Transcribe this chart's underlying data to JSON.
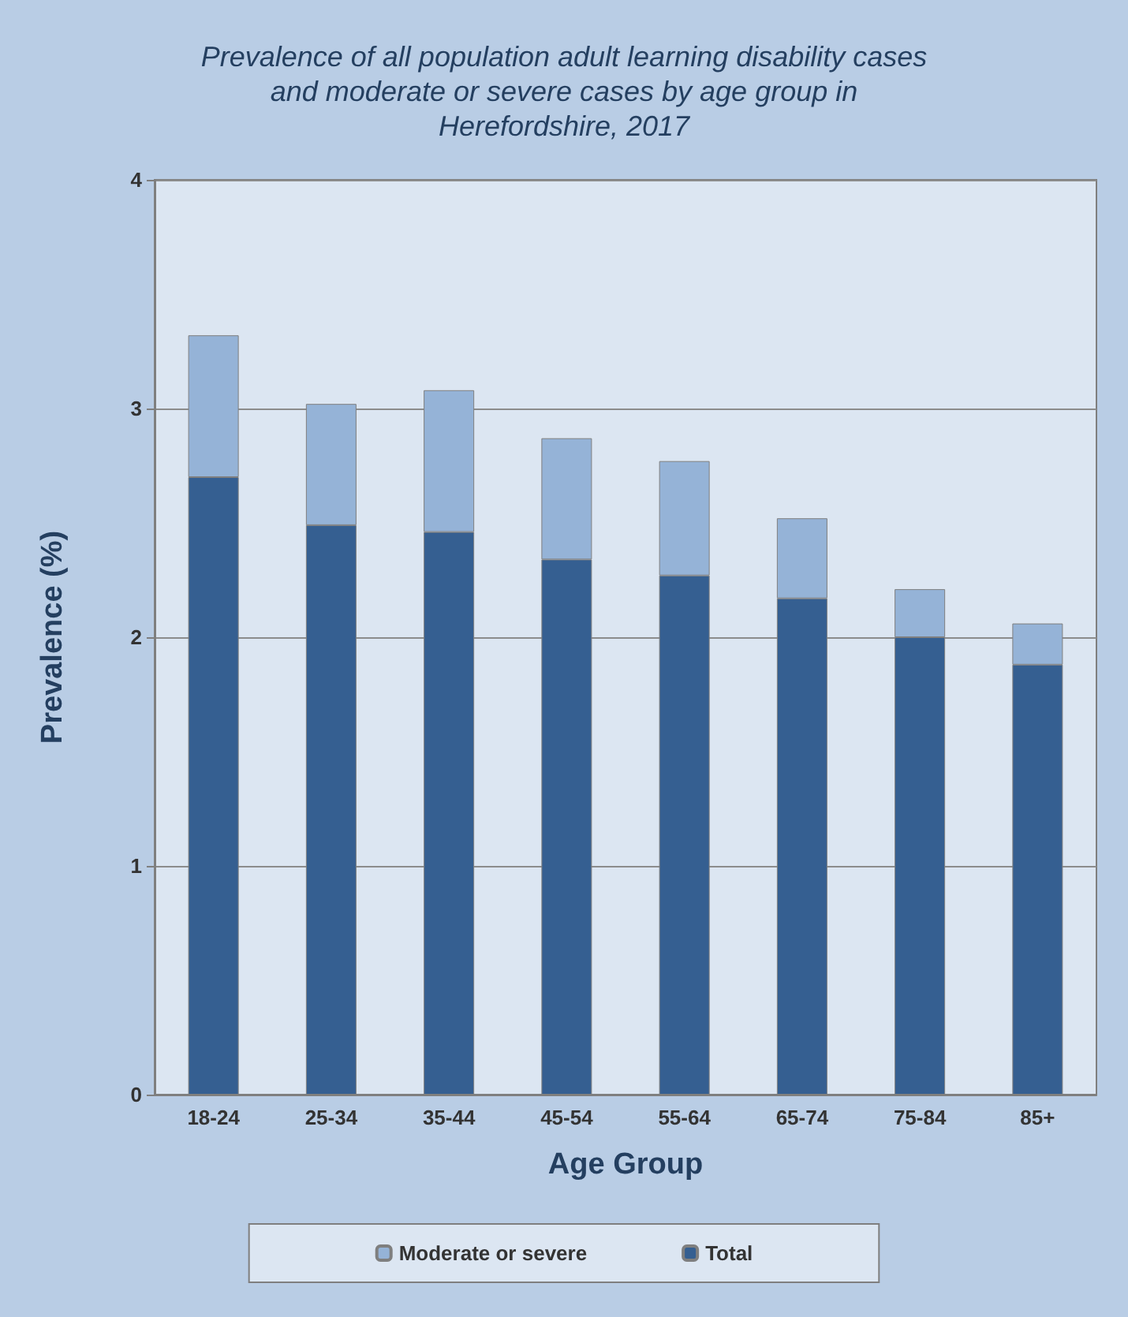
{
  "chart_data": {
    "type": "bar",
    "title": "Prevalence of all population adult learning disability cases\nand moderate or severe cases by age group in\nHerefordshire, 2017",
    "xlabel": "Age Group",
    "ylabel": "Prevalence (%)",
    "categories": [
      "18-24",
      "25-34",
      "35-44",
      "45-54",
      "55-64",
      "65-74",
      "75-84",
      "85+"
    ],
    "stacked": true,
    "series": [
      {
        "name": "Total",
        "color": "#355f91",
        "values": [
          2.7,
          2.49,
          2.46,
          2.34,
          2.27,
          2.17,
          2.0,
          1.88
        ]
      },
      {
        "name": "Moderate or severe",
        "color": "#95b3d7",
        "values": [
          0.62,
          0.53,
          0.62,
          0.53,
          0.5,
          0.35,
          0.21,
          0.18
        ]
      }
    ],
    "ylim": [
      0,
      4
    ],
    "yticks": [
      0,
      1,
      2,
      3,
      4
    ],
    "grid": "y",
    "legend": "bottom"
  }
}
